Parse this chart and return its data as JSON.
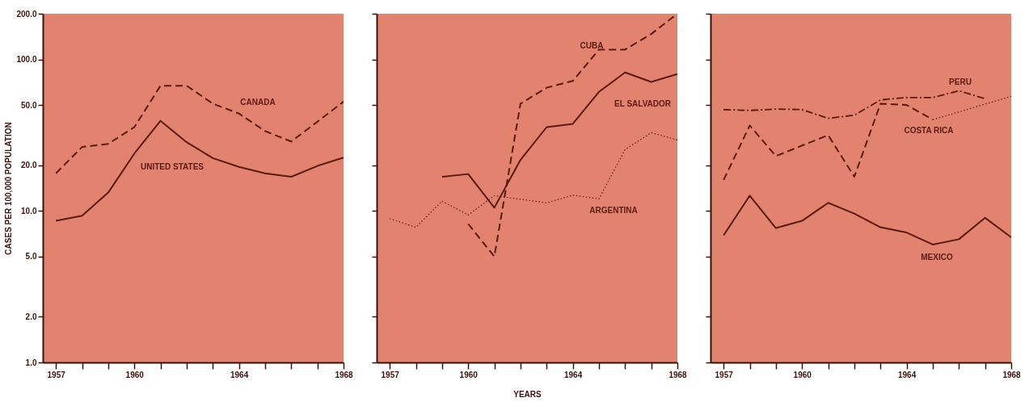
{
  "chart_data": [
    {
      "type": "line",
      "ylabel": "CASES PER 100,000 POPULATION",
      "log": true,
      "grid": false,
      "xlim": [
        1956.5,
        1968
      ],
      "ylim": [
        1,
        200
      ],
      "xticks": [
        1957,
        {
          "value": 1958,
          "label": null
        },
        {
          "value": 1959,
          "label": null
        },
        1960,
        {
          "value": 1961,
          "label": null
        },
        {
          "value": 1962,
          "label": null
        },
        {
          "value": 1963,
          "label": null
        },
        1964,
        {
          "value": 1965,
          "label": null
        },
        {
          "value": 1966,
          "label": null
        },
        {
          "value": 1967,
          "label": null
        },
        1968
      ],
      "yticks": [
        {
          "value": 1,
          "label": "1.0"
        },
        {
          "value": 2,
          "label": "2.0"
        },
        {
          "value": 5,
          "label": "5.0"
        },
        {
          "value": 10,
          "label": "10.0"
        },
        {
          "value": 20,
          "label": "20.0"
        },
        {
          "value": 50,
          "label": "50.0"
        },
        {
          "value": 100,
          "label": "100.0"
        },
        {
          "value": 200,
          "label": "200.0"
        }
      ],
      "x": [
        1957,
        1958,
        1959,
        1960,
        1961,
        1962,
        1963,
        1964,
        1965,
        1966,
        1967,
        1968
      ],
      "series": [
        {
          "name": "CANADA",
          "color": "#5b1a10",
          "line_style": "dashed",
          "values": [
            17.7,
            26.4,
            27.7,
            35.7,
            67,
            67,
            51,
            43.9,
            33.6,
            28.7,
            38.8,
            52.6
          ]
        },
        {
          "name": "UNITED STATES",
          "color": "#5b1a10",
          "line_style": "solid",
          "values": [
            8.6,
            9.3,
            13.2,
            23.9,
            39.3,
            28.4,
            22.3,
            19.5,
            17.7,
            16.8,
            19.8,
            22.5
          ]
        }
      ]
    },
    {
      "type": "line",
      "xlabel": "YEARS",
      "log": true,
      "grid": false,
      "tick_labels": "x",
      "xlim": [
        1956.5,
        1968
      ],
      "ylim": [
        1,
        200
      ],
      "xticks": [
        1957,
        {
          "value": 1958,
          "label": null
        },
        {
          "value": 1959,
          "label": null
        },
        1960,
        {
          "value": 1961,
          "label": null
        },
        {
          "value": 1962,
          "label": null
        },
        {
          "value": 1963,
          "label": null
        },
        1964,
        {
          "value": 1965,
          "label": null
        },
        {
          "value": 1966,
          "label": null
        },
        {
          "value": 1967,
          "label": null
        },
        1968
      ],
      "yticks": [
        {
          "value": 1,
          "label": null
        },
        {
          "value": 2,
          "label": null
        },
        {
          "value": 5,
          "label": null
        },
        {
          "value": 10,
          "label": null
        },
        {
          "value": 20,
          "label": null
        },
        {
          "value": 50,
          "label": null
        },
        {
          "value": 100,
          "label": null
        },
        {
          "value": 200,
          "label": null
        }
      ],
      "series": [
        {
          "name": "CUBA",
          "color": "#5b1a10",
          "line_style": "dashed",
          "x": [
            1960,
            1961,
            1962,
            1963,
            1964,
            1965,
            1966,
            1967,
            1968
          ],
          "values": [
            8.2,
            5.0,
            51,
            65,
            72,
            116,
            116,
            147,
            200
          ]
        },
        {
          "name": "EL SALVADOR",
          "color": "#5b1a10",
          "line_style": "solid",
          "x": [
            1959,
            1960,
            1961,
            1962,
            1963,
            1964,
            1965,
            1966,
            1967,
            1968
          ],
          "values": [
            16.8,
            17.5,
            10.5,
            21.7,
            35.7,
            37.5,
            61,
            82,
            71,
            80
          ]
        },
        {
          "name": "ARGENTINA",
          "color": "#5b1a10",
          "line_style": "dotted",
          "x": [
            1957,
            1958,
            1959,
            1960,
            1961,
            1963,
            1964,
            1965,
            1966,
            1967,
            1968
          ],
          "values": [
            8.9,
            7.8,
            11.6,
            9.4,
            12.6,
            11.3,
            12.7,
            12.0,
            25.4,
            32.8,
            29.4
          ]
        }
      ]
    },
    {
      "type": "line",
      "log": true,
      "grid": false,
      "tick_labels": "x",
      "xlim": [
        1956.5,
        1968
      ],
      "ylim": [
        1,
        200
      ],
      "xticks": [
        1957,
        {
          "value": 1958,
          "label": null
        },
        {
          "value": 1959,
          "label": null
        },
        1960,
        {
          "value": 1961,
          "label": null
        },
        {
          "value": 1962,
          "label": null
        },
        {
          "value": 1963,
          "label": null
        },
        1964,
        {
          "value": 1965,
          "label": null
        },
        {
          "value": 1966,
          "label": null
        },
        {
          "value": 1967,
          "label": null
        },
        1968
      ],
      "yticks": [
        {
          "value": 1,
          "label": null
        },
        {
          "value": 2,
          "label": null
        },
        {
          "value": 5,
          "label": null
        },
        {
          "value": 10,
          "label": null
        },
        {
          "value": 20,
          "label": null
        },
        {
          "value": 50,
          "label": null
        },
        {
          "value": 100,
          "label": null
        },
        {
          "value": 200,
          "label": null
        }
      ],
      "series": [
        {
          "name": "PERU",
          "color": "#5b1a10",
          "line_style": "dashdot",
          "x": [
            1957,
            1958,
            1959,
            1960,
            1961,
            1962,
            1963,
            1964,
            1965,
            1966,
            1967
          ],
          "values": [
            46.6,
            46,
            47,
            46.6,
            40.8,
            42.8,
            54,
            56,
            56,
            62,
            55
          ]
        },
        {
          "name": "COSTA RICA",
          "color": "#5b1a10",
          "line_style": "dashed",
          "x": [
            1957,
            1958,
            1959,
            1960,
            1961,
            1962,
            1963,
            1964,
            1965
          ],
          "values": [
            16,
            36.6,
            23,
            27,
            31.6,
            16.8,
            51,
            50,
            40
          ]
        },
        {
          "color": "#5b1a10",
          "line_style": "dotted",
          "x": [
            1965,
            1968
          ],
          "values": [
            40,
            57
          ]
        },
        {
          "name": "MEXICO",
          "color": "#5b1a10",
          "line_style": "solid",
          "x": [
            1957,
            1958,
            1959,
            1960,
            1961,
            1962,
            1963,
            1964,
            1965,
            1966,
            1967,
            1968
          ],
          "values": [
            6.9,
            12.6,
            7.7,
            8.6,
            11.3,
            9.6,
            7.8,
            7.2,
            6.0,
            6.5,
            9.0,
            6.7
          ]
        }
      ]
    }
  ]
}
